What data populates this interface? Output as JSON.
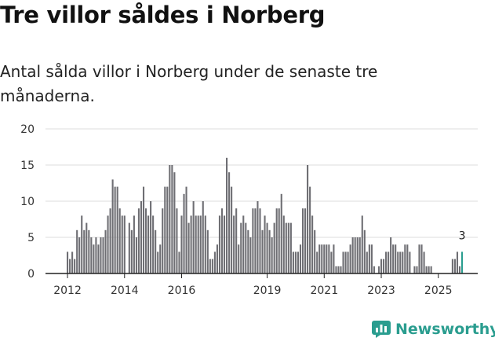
{
  "header": {
    "title": "Tre villor såldes i Norberg",
    "subtitle": "Antal sålda villor i Norberg under de senaste tre månaderna."
  },
  "brand": {
    "name": "Newsworthy",
    "icon": "newsworthy-logo-icon",
    "color": "#2a9d8f"
  },
  "chart_data": {
    "type": "bar",
    "title": "",
    "xlabel": "",
    "ylabel": "",
    "ylim": [
      0,
      20
    ],
    "yticks": [
      0,
      5,
      10,
      15,
      20
    ],
    "xticks": [
      {
        "label": "2012",
        "index": 0
      },
      {
        "label": "2014",
        "index": 24
      },
      {
        "label": "2016",
        "index": 48
      },
      {
        "label": "2019",
        "index": 84
      },
      {
        "label": "2021",
        "index": 108
      },
      {
        "label": "2023",
        "index": 132
      },
      {
        "label": "2025",
        "index": 156
      }
    ],
    "start": "2012-01",
    "bar_color": "#6e6e73",
    "highlight_color": "#2a9d8f",
    "highlight_index": 166,
    "highlight_label": "3",
    "values": [
      3,
      2,
      3,
      2,
      6,
      5,
      8,
      6,
      7,
      6,
      5,
      4,
      5,
      4,
      5,
      5,
      6,
      8,
      9,
      13,
      12,
      12,
      9,
      8,
      8,
      0,
      7,
      6,
      8,
      5,
      9,
      10,
      12,
      9,
      8,
      10,
      8,
      6,
      3,
      4,
      9,
      12,
      12,
      15,
      15,
      14,
      9,
      3,
      8,
      11,
      12,
      7,
      8,
      10,
      8,
      8,
      8,
      10,
      8,
      6,
      2,
      2,
      3,
      4,
      8,
      9,
      8,
      16,
      14,
      12,
      8,
      9,
      4,
      7,
      8,
      7,
      6,
      5,
      9,
      9,
      10,
      9,
      6,
      8,
      7,
      6,
      5,
      7,
      9,
      9,
      11,
      8,
      7,
      7,
      7,
      3,
      3,
      3,
      4,
      9,
      9,
      15,
      12,
      8,
      6,
      3,
      4,
      4,
      4,
      4,
      4,
      3,
      4,
      1,
      1,
      1,
      3,
      3,
      3,
      4,
      5,
      5,
      5,
      5,
      8,
      6,
      3,
      4,
      4,
      1,
      0,
      1,
      2,
      2,
      3,
      3,
      5,
      4,
      4,
      3,
      3,
      3,
      4,
      4,
      3,
      0,
      1,
      1,
      4,
      4,
      3,
      1,
      1,
      1,
      0,
      0,
      0,
      0,
      0,
      0,
      0,
      0,
      2,
      2,
      3,
      1,
      3
    ]
  }
}
